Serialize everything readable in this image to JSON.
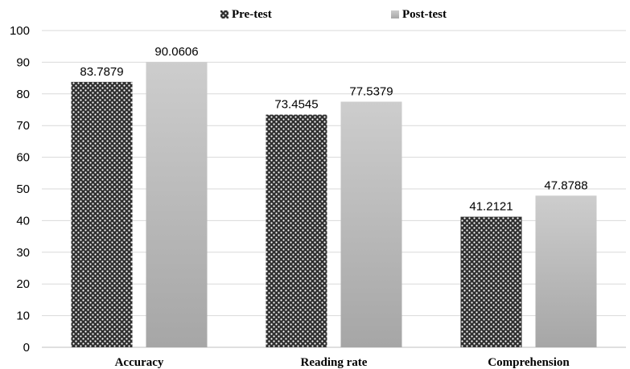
{
  "chart_data": {
    "type": "bar",
    "categories": [
      "Accuracy",
      "Reading rate",
      "Comprehension"
    ],
    "series": [
      {
        "name": "Pre-test",
        "values": [
          83.7879,
          73.4545,
          41.2121
        ],
        "color": "#3a3a3a",
        "pattern": "dotted-checker"
      },
      {
        "name": "Post-test",
        "values": [
          90.0606,
          77.5379,
          47.8788
        ],
        "color": "#b4b4b4",
        "pattern": "vertical-gradient"
      }
    ],
    "data_labels": [
      [
        "83.7879",
        "73.4545",
        "41.2121"
      ],
      [
        "90.0606",
        "77.5379",
        "47.8788"
      ]
    ],
    "ylim": [
      0,
      100
    ],
    "yticks": [
      0,
      10,
      20,
      30,
      40,
      50,
      60,
      70,
      80,
      90,
      100
    ],
    "grid": true,
    "legend_position": "top-center",
    "title": "",
    "xlabel": "",
    "ylabel": ""
  }
}
